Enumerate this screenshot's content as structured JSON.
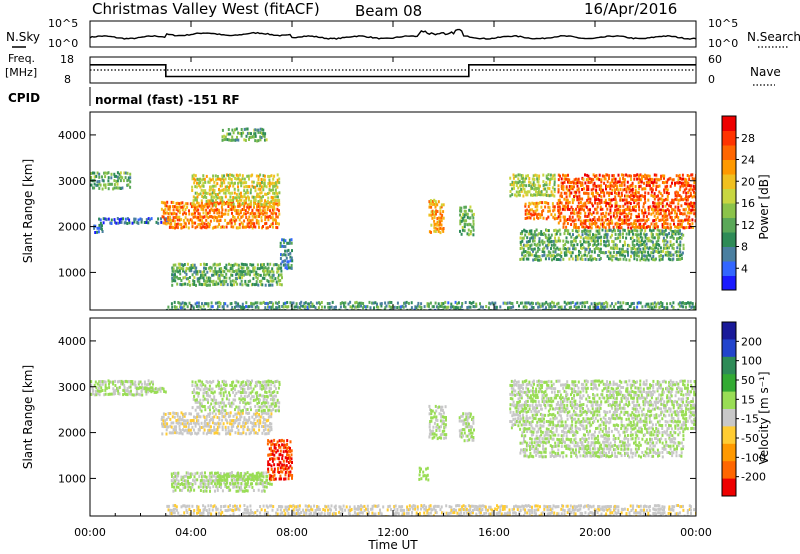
{
  "header": {
    "station": "Christmas Valley West (fitACF)",
    "beam": "Beam 08",
    "date": "16/Apr/2016"
  },
  "noise_panel": {
    "left_label": "N.Sky",
    "right_label": "N.Search",
    "left_ticks": [
      "10^5",
      "10^0"
    ],
    "right_ticks": [
      "10^5",
      "10^0"
    ]
  },
  "freq_panel": {
    "left_label_top": "Freq.",
    "left_label_bottom": "[MHz]",
    "left_ticks": [
      "18",
      "8"
    ],
    "right_label": "Nave",
    "right_ticks": [
      "60",
      "0"
    ],
    "freq_levels_mhz": [
      {
        "from": 0,
        "to": 3,
        "value": 15
      },
      {
        "from": 3,
        "to": 15,
        "value": 10.5
      },
      {
        "from": 15,
        "to": 24,
        "value": 15
      }
    ],
    "nave_level": 30
  },
  "cpid": {
    "label": "CPID",
    "mode_text": "normal (fast) -151 RF"
  },
  "chart_data": [
    {
      "type": "heatmap",
      "name": "power",
      "ylabel": "Slant Range [km]",
      "yticks": [
        "1000",
        "2000",
        "3000",
        "4000"
      ],
      "ylim": [
        180,
        4500
      ],
      "xlim": [
        0,
        24
      ],
      "colorbar": {
        "label": "Power [dB]",
        "ticks": [
          "4",
          "8",
          "12",
          "16",
          "20",
          "24",
          "28"
        ],
        "range": [
          0,
          32
        ],
        "colors": [
          "#1a1aff",
          "#3366ff",
          "#4a7fa0",
          "#2e8b57",
          "#5aa858",
          "#8bc34a",
          "#c8d641",
          "#f0c020",
          "#ff9900",
          "#ff6600",
          "#ff3300",
          "#ee0000"
        ]
      },
      "echo_regions": [
        {
          "t0": 0.0,
          "t1": 1.6,
          "r0": 2850,
          "r1": 3250,
          "level": 12
        },
        {
          "t0": 0.1,
          "t1": 0.5,
          "r0": 1900,
          "r1": 2100,
          "level": 6
        },
        {
          "t0": 0.3,
          "t1": 3.2,
          "r0": 2100,
          "r1": 2250,
          "level": 6
        },
        {
          "t0": 2.8,
          "t1": 7.5,
          "r0": 2000,
          "r1": 2600,
          "level": 24
        },
        {
          "t0": 4.0,
          "t1": 7.5,
          "r0": 2500,
          "r1": 3200,
          "level": 18
        },
        {
          "t0": 3.2,
          "t1": 7.6,
          "r0": 750,
          "r1": 1250,
          "level": 12
        },
        {
          "t0": 7.5,
          "t1": 8.0,
          "r0": 1100,
          "r1": 1800,
          "level": 8
        },
        {
          "t0": 5.2,
          "t1": 7.0,
          "r0": 3900,
          "r1": 4200,
          "level": 12
        },
        {
          "t0": 13.4,
          "t1": 14.0,
          "r0": 1900,
          "r1": 2650,
          "level": 22
        },
        {
          "t0": 14.6,
          "t1": 15.2,
          "r0": 1850,
          "r1": 2500,
          "level": 14
        },
        {
          "t0": 16.6,
          "t1": 18.4,
          "r0": 2700,
          "r1": 3200,
          "level": 16
        },
        {
          "t0": 17.2,
          "t1": 18.6,
          "r0": 2200,
          "r1": 2600,
          "level": 24
        },
        {
          "t0": 18.5,
          "t1": 24.0,
          "r0": 2000,
          "r1": 3200,
          "level": 26
        },
        {
          "t0": 17.0,
          "t1": 23.5,
          "r0": 1300,
          "r1": 2000,
          "level": 12
        },
        {
          "t0": 3.0,
          "t1": 24.0,
          "r0": 180,
          "r1": 420,
          "level": 10
        }
      ]
    },
    {
      "type": "heatmap",
      "name": "velocity",
      "ylabel": "Slant Range [km]",
      "yticks": [
        "1000",
        "2000",
        "3000",
        "4000"
      ],
      "ylim": [
        180,
        4500
      ],
      "xlim": [
        0,
        24
      ],
      "colorbar": {
        "label": "Velocity [m s⁻¹]",
        "ticks": [
          "200",
          "100",
          "50",
          "15",
          "-15",
          "-50",
          "-100",
          "-200"
        ],
        "range": [
          -250,
          250
        ],
        "colors": [
          "#1a1a99",
          "#2244cc",
          "#2e8b57",
          "#33aa33",
          "#99dd55",
          "#c8c8c8",
          "#ffcc33",
          "#ff9900",
          "#ff6600",
          "#ee0000"
        ]
      },
      "echo_regions": [
        {
          "t0": 0.0,
          "t1": 2.5,
          "r0": 2850,
          "r1": 3200,
          "v": 0
        },
        {
          "t0": 1.8,
          "t1": 3.0,
          "r0": 2900,
          "r1": 3050,
          "v": 0
        },
        {
          "t0": 2.8,
          "t1": 7.2,
          "r0": 2000,
          "r1": 2500,
          "v": -40
        },
        {
          "t0": 4.0,
          "t1": 7.5,
          "r0": 2500,
          "r1": 3200,
          "v": 0
        },
        {
          "t0": 3.2,
          "t1": 7.0,
          "r0": 750,
          "r1": 1200,
          "v": 0
        },
        {
          "t0": 5.0,
          "t1": 7.2,
          "r0": 900,
          "r1": 1150,
          "v": 30
        },
        {
          "t0": 7.0,
          "t1": 8.0,
          "r0": 1000,
          "r1": 1900,
          "v": -200
        },
        {
          "t0": 13.0,
          "t1": 13.4,
          "r0": 1000,
          "r1": 1300,
          "v": 30
        },
        {
          "t0": 13.4,
          "t1": 14.1,
          "r0": 1900,
          "r1": 2650,
          "v": 0
        },
        {
          "t0": 14.6,
          "t1": 15.2,
          "r0": 1850,
          "r1": 2500,
          "v": 0
        },
        {
          "t0": 16.6,
          "t1": 24.0,
          "r0": 2100,
          "r1": 3200,
          "v": 0
        },
        {
          "t0": 17.0,
          "t1": 23.5,
          "r0": 1500,
          "r1": 2100,
          "v": 0
        },
        {
          "t0": 3.0,
          "t1": 24.0,
          "r0": 180,
          "r1": 480,
          "v": -40
        }
      ]
    }
  ],
  "x_axis": {
    "ticks": [
      "00:00",
      "04:00",
      "08:00",
      "12:00",
      "16:00",
      "20:00",
      "00:00"
    ],
    "tick_hours": [
      0,
      4,
      8,
      12,
      16,
      20,
      24
    ],
    "label": "Time UT"
  }
}
